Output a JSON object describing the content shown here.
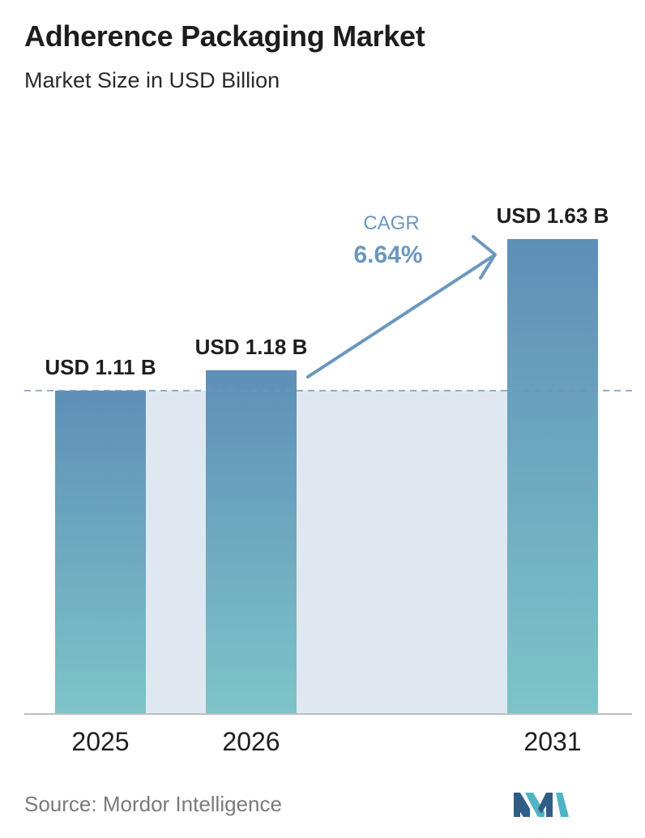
{
  "header": {
    "title": "Adherence Packaging Market",
    "subtitle": "Market Size in USD Billion"
  },
  "chart_data": {
    "type": "bar",
    "title": "Adherence Packaging Market",
    "subtitle": "Market Size in USD Billion",
    "categories": [
      "2025",
      "2026",
      "2031"
    ],
    "values": [
      1.11,
      1.18,
      1.63
    ],
    "data_labels": [
      "USD 1.11 B",
      "USD 1.18 B",
      "USD 1.63 B"
    ],
    "unit": "USD Billion",
    "ylim": [
      0,
      1.63
    ],
    "grid": false,
    "legend": "none",
    "reference_line": {
      "value": 1.11,
      "style": "dashed"
    },
    "annotation": {
      "label": "CAGR",
      "value": "6.64%"
    },
    "colors": {
      "bar_top": "#5e8fb8",
      "bar_bottom": "#7ec4c8",
      "band": "#dfe8f1",
      "annotation": "#6b97be",
      "axis": "#bdbdbd"
    }
  },
  "footer": {
    "source": "Source:  Mordor Intelligence"
  },
  "logo": {
    "icon": "mordor-intelligence-logo-icon",
    "color_dark": "#2f5d86",
    "color_light": "#4fb3c4"
  }
}
